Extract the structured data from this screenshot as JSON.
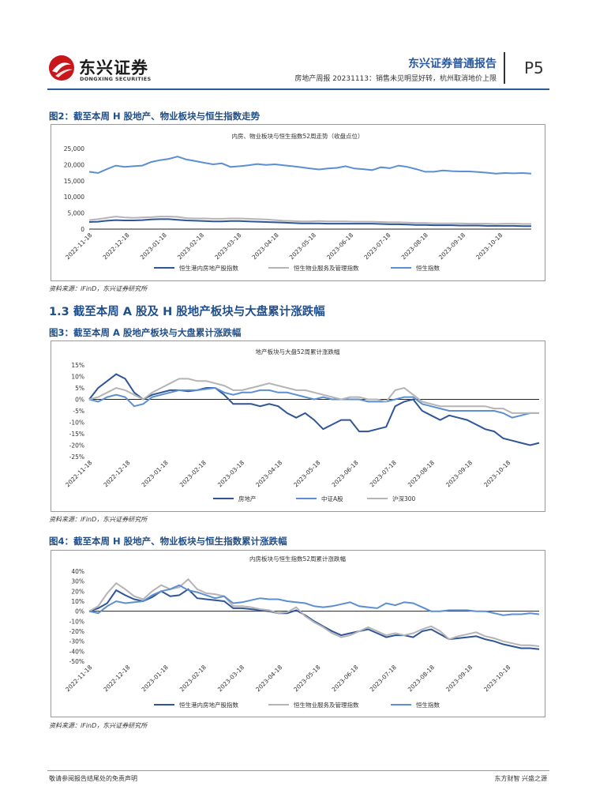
{
  "header": {
    "logo_cn": "东兴证券",
    "logo_en": "DONGXING SECURITIES",
    "report_title": "东兴证券普通报告",
    "report_subtitle": "房地产周报 20231113：销售未见明显好转，杭州取消地价上限",
    "page_number": "P5"
  },
  "figure2": {
    "caption": "图2：截至本周 H 股地产、物业板块与恒生指数走势",
    "source": "资料来源：iFinD，东兴证券研究所"
  },
  "section": {
    "title": "1.3 截至本周 A 股及 H 股地产板块与大盘累计涨跌幅"
  },
  "figure3": {
    "caption": "图3：截至本周 A 股地产板块与大盘累计涨跌幅",
    "source": "资料来源：iFinD，东兴证券研究所"
  },
  "figure4": {
    "caption": "图4：截至本周 H 股地产、物业板块与恒生指数累计涨跌幅",
    "source": "资料来源：iFinD，东兴证券研究所"
  },
  "footer": {
    "left": "敬请参阅报告结尾处的免责声明",
    "right": "东方财智 兴盛之源"
  },
  "colors": {
    "dark_blue": "#2f5597",
    "mid_blue": "#5b8fd1",
    "gray": "#b4b4b4",
    "header_blue": "#2a5a9a"
  },
  "chart_data": [
    {
      "type": "line",
      "title": "内房、物业板块与恒生指数52周走势（收盘点位）",
      "x_ticks": [
        "2022-11-18",
        "2022-12-18",
        "2023-01-18",
        "2023-02-18",
        "2023-03-18",
        "2023-04-18",
        "2023-05-18",
        "2023-06-18",
        "2023-07-18",
        "2023-08-18",
        "2023-09-18",
        "2023-10-18"
      ],
      "ylim": [
        0,
        25000
      ],
      "y_ticks": [
        "0",
        "5,000",
        "10,000",
        "15,000",
        "20,000",
        "25,000"
      ],
      "series": [
        {
          "name": "恒生港内房地产股指数",
          "color": "#2f5597",
          "values": [
            2200,
            2300,
            2600,
            2800,
            2700,
            2700,
            2800,
            3000,
            3100,
            3100,
            2900,
            2700,
            2600,
            2500,
            2400,
            2400,
            2500,
            2500,
            2400,
            2300,
            2200,
            2100,
            2000,
            1900,
            1800,
            1800,
            1800,
            1700,
            1700,
            1700,
            1700,
            1700,
            1700,
            1600,
            1500,
            1500,
            1400,
            1300,
            1300,
            1200,
            1200,
            1200,
            1100,
            1100,
            1100,
            1000,
            1000,
            1000,
            1000,
            900,
            900
          ]
        },
        {
          "name": "恒生物业服务及管理指数",
          "color": "#b4b4b4",
          "values": [
            2800,
            3100,
            3500,
            3900,
            3600,
            3500,
            3600,
            3700,
            3900,
            3900,
            3800,
            3400,
            3300,
            3300,
            3200,
            3200,
            3300,
            3300,
            3200,
            3100,
            3000,
            2800,
            2600,
            2500,
            2400,
            2400,
            2500,
            2400,
            2400,
            2400,
            2300,
            2300,
            2300,
            2200,
            2100,
            2100,
            2000,
            1900,
            1900,
            1800,
            1800,
            1800,
            1800,
            1700,
            1700,
            1700,
            1600,
            1700,
            1700,
            1600,
            1600
          ]
        },
        {
          "name": "恒生指数",
          "color": "#5b8fd1",
          "values": [
            17800,
            17400,
            18600,
            19700,
            19300,
            19500,
            19700,
            20800,
            21400,
            21800,
            22500,
            21600,
            21100,
            20600,
            20100,
            20400,
            19300,
            19500,
            19800,
            20200,
            19900,
            20100,
            19800,
            19500,
            19200,
            18800,
            18500,
            18800,
            19000,
            19500,
            18800,
            18600,
            18300,
            19200,
            18900,
            19700,
            19300,
            18600,
            17800,
            17800,
            18200,
            18000,
            17900,
            17900,
            17700,
            17500,
            17200,
            17400,
            17300,
            17400,
            17200
          ]
        }
      ]
    },
    {
      "type": "line",
      "title": "地产板块与大盘52周累计涨跌幅",
      "x_ticks": [
        "2022-11-18",
        "2022-12-18",
        "2023-01-18",
        "2023-02-18",
        "2023-03-18",
        "2023-04-18",
        "2023-05-18",
        "2023-06-18",
        "2023-07-18",
        "2023-08-18",
        "2023-09-18",
        "2023-10-18"
      ],
      "ylim": [
        -25,
        15
      ],
      "y_ticks": [
        "-25%",
        "-20%",
        "-15%",
        "-10%",
        "-5%",
        "0%",
        "5%",
        "10%",
        "15%"
      ],
      "series": [
        {
          "name": "房地产",
          "color": "#2f5597",
          "values": [
            0,
            5,
            8,
            11,
            9,
            3,
            0,
            2,
            3,
            4,
            4,
            3.5,
            4,
            5,
            5,
            2,
            -2,
            -2,
            -2,
            -3,
            -2,
            -3,
            -6,
            -8,
            -6,
            -9,
            -13,
            -11,
            -9,
            -9,
            -14,
            -14,
            -13,
            -12,
            -3,
            -1,
            0,
            -5,
            -7,
            -9,
            -7,
            -8,
            -9,
            -11,
            -13,
            -14,
            -17,
            -18,
            -19,
            -20,
            -19
          ]
        },
        {
          "name": "中证A股",
          "color": "#5b8fd1",
          "values": [
            0,
            -1,
            1,
            2,
            1,
            -3,
            -2,
            1,
            2,
            3,
            4,
            4,
            4,
            4.5,
            5,
            3,
            2,
            3,
            3,
            4,
            4,
            3,
            3,
            2,
            1,
            0,
            1,
            0,
            0,
            0,
            0,
            -1,
            -1,
            -1,
            0,
            1,
            1,
            -2,
            -3,
            -4,
            -5,
            -5,
            -5,
            -5,
            -5,
            -5,
            -6,
            -8,
            -7,
            -6,
            -6
          ]
        },
        {
          "name": "沪深300",
          "color": "#b4b4b4",
          "values": [
            0,
            1,
            3,
            5,
            4,
            2,
            0,
            3,
            5,
            7,
            9,
            9,
            8,
            8,
            7,
            6,
            4,
            4,
            5,
            6,
            7,
            6,
            5,
            4,
            4,
            3,
            2,
            1,
            0,
            1,
            1,
            0,
            0,
            -1,
            4,
            5,
            2,
            -1,
            -2,
            -3,
            -3,
            -3,
            -3,
            -3,
            -3,
            -4,
            -4,
            -6,
            -6,
            -6,
            -6
          ]
        }
      ]
    },
    {
      "type": "line",
      "title": "内房板块与恒生指数52周累计涨跌幅",
      "x_ticks": [
        "2022-11-18",
        "2022-12-18",
        "2023-01-18",
        "2023-02-18",
        "2023-03-18",
        "2023-04-18",
        "2023-05-18",
        "2023-06-18",
        "2023-07-18",
        "2023-08-18",
        "2023-09-18",
        "2023-10-18"
      ],
      "ylim": [
        -50,
        40
      ],
      "y_ticks": [
        "-50%",
        "-40%",
        "-30%",
        "-20%",
        "-10%",
        "0%",
        "10%",
        "20%",
        "30%",
        "40%"
      ],
      "series": [
        {
          "name": "恒生港内房地产股指数",
          "color": "#2f5597",
          "values": [
            0,
            3,
            8,
            21,
            16,
            12,
            10,
            14,
            20,
            15,
            16,
            22,
            13,
            12,
            11,
            10,
            3,
            3,
            2,
            1,
            0,
            -2,
            -2,
            1,
            -4,
            -10,
            -15,
            -20,
            -24,
            -22,
            -20,
            -18,
            -22,
            -26,
            -24,
            -24,
            -26,
            -20,
            -18,
            -23,
            -28,
            -27,
            -26,
            -25,
            -28,
            -30,
            -33,
            -35,
            -37,
            -37,
            -38
          ]
        },
        {
          "name": "恒生物业服务及管理指数",
          "color": "#b4b4b4",
          "values": [
            0,
            5,
            18,
            28,
            22,
            15,
            12,
            20,
            26,
            22,
            24,
            32,
            22,
            18,
            17,
            15,
            5,
            5,
            4,
            2,
            1,
            -2,
            -1,
            4,
            -5,
            -11,
            -16,
            -22,
            -26,
            -24,
            -20,
            -16,
            -20,
            -24,
            -22,
            -24,
            -22,
            -18,
            -15,
            -20,
            -28,
            -25,
            -23,
            -21,
            -25,
            -27,
            -30,
            -32,
            -34,
            -34,
            -35
          ]
        },
        {
          "name": "恒生指数",
          "color": "#5b8fd1",
          "values": [
            0,
            -2,
            5,
            10,
            8,
            9,
            10,
            16,
            20,
            22,
            26,
            21,
            19,
            16,
            13,
            15,
            8,
            9,
            11,
            13,
            12,
            12,
            10,
            9,
            8,
            5,
            4,
            5,
            7,
            9,
            5,
            4,
            3,
            8,
            6,
            9,
            8,
            4,
            0,
            0,
            1,
            1,
            1,
            0,
            0,
            -2,
            -4,
            -3,
            -3,
            -2,
            -3
          ]
        }
      ]
    }
  ]
}
